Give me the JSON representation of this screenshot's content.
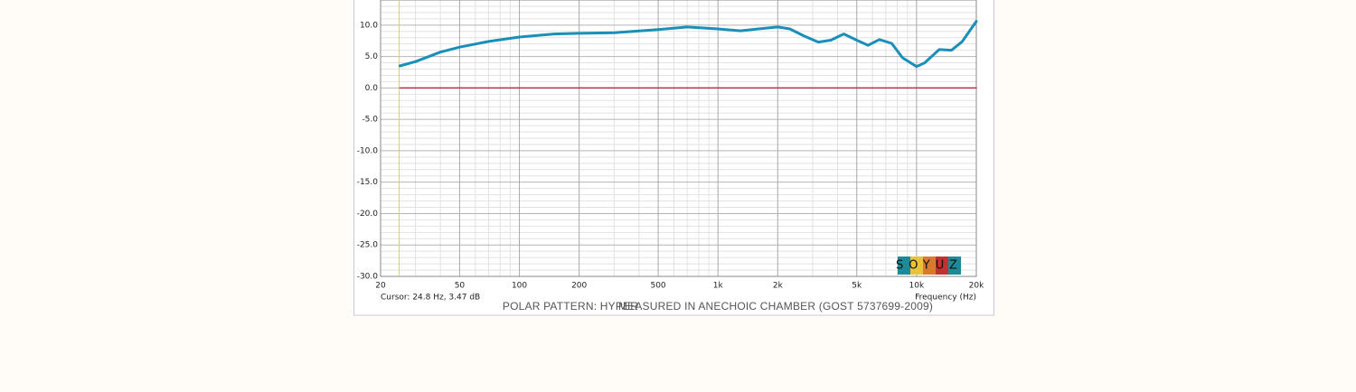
{
  "chart_data": {
    "type": "line",
    "x_scale": "log",
    "xlim": [
      20,
      20000
    ],
    "ylim": [
      -30,
      14
    ],
    "xticks": [
      20,
      50,
      100,
      200,
      500,
      {
        "value": 1000,
        "label": "1k"
      },
      {
        "value": 2000,
        "label": "2k"
      },
      {
        "value": 5000,
        "label": "5k"
      },
      {
        "value": 10000,
        "label": "10k"
      },
      {
        "value": 20000,
        "label": "20k"
      }
    ],
    "x_minor_ticks": [
      30,
      40,
      60,
      70,
      80,
      90,
      300,
      400,
      600,
      700,
      800,
      900,
      3000,
      4000,
      6000,
      7000,
      8000,
      9000
    ],
    "yticks": [
      {
        "value": 10,
        "label": "10.0"
      },
      {
        "value": 5,
        "label": "5.0"
      },
      {
        "value": 0,
        "label": "0.0"
      },
      {
        "value": -5,
        "label": "-5.0"
      },
      {
        "value": -10,
        "label": "-10.0"
      },
      {
        "value": -15,
        "label": "-15.0"
      },
      {
        "value": -20,
        "label": "-20.0"
      },
      {
        "value": -25,
        "label": "-25.0"
      },
      {
        "value": -30,
        "label": "-30.0"
      }
    ],
    "y_minor_ticks": [
      13,
      12,
      11,
      9,
      8,
      7,
      6,
      4,
      3,
      2,
      1,
      -1,
      -2,
      -3,
      -4,
      -6,
      -7,
      -8,
      -9,
      -11,
      -12,
      -13,
      -14,
      -16,
      -17,
      -18,
      -19,
      -21,
      -22,
      -23,
      -24,
      -26,
      -27,
      -28,
      -29
    ],
    "grid": true,
    "x_label": "Frequency (Hz)",
    "cursor": {
      "x": 24.8,
      "y": 3.47,
      "color": "#d8d26a"
    },
    "cursor_label": "Cursor: 24.8 Hz, 3.47 dB",
    "annotations": [
      "POLAR PATTERN: HYPER",
      "MEASURED IN ANECHOIC CHAMBER (GOST 5737699-2009)"
    ],
    "logo": "SOYUZ",
    "series": [
      {
        "color": "#1a8fb8",
        "x": [
          25,
          30,
          40,
          50,
          70,
          100,
          150,
          200,
          300,
          500,
          700,
          1000,
          1300,
          1600,
          2000,
          2300,
          2700,
          3200,
          3700,
          4300,
          5000,
          5700,
          6500,
          7500,
          8500,
          10000,
          11000,
          13000,
          15000,
          17000,
          20000
        ],
        "values": [
          3.5,
          4.2,
          5.7,
          6.5,
          7.4,
          8.1,
          8.6,
          8.7,
          8.8,
          9.3,
          9.7,
          9.4,
          9.1,
          9.4,
          9.7,
          9.4,
          8.3,
          7.3,
          7.6,
          8.6,
          7.6,
          6.8,
          7.7,
          7.1,
          4.8,
          3.4,
          4.0,
          6.1,
          6.0,
          7.4,
          10.6
        ]
      },
      {
        "color": "#b5324e",
        "x": [
          25,
          20000
        ],
        "values": [
          0,
          0
        ]
      }
    ]
  }
}
